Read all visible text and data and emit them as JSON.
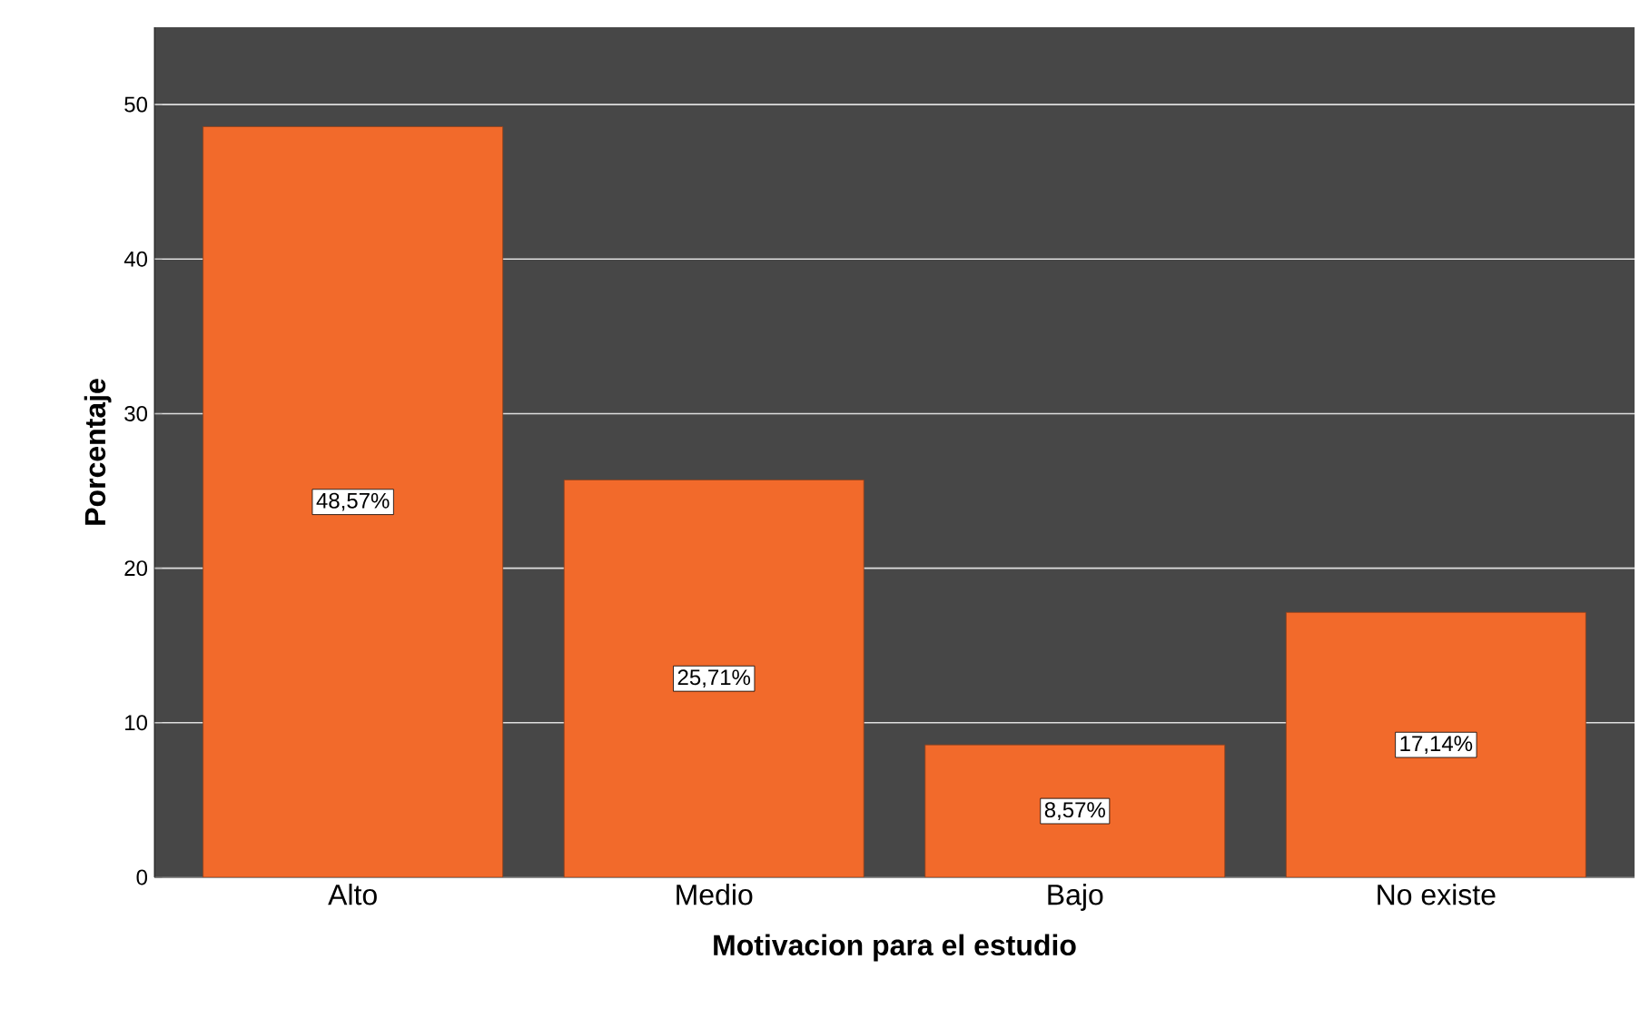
{
  "chart_data": {
    "type": "bar",
    "xlabel": "Motivacion para el estudio",
    "ylabel": "Porcentaje",
    "categories": [
      "Alto",
      "Medio",
      "Bajo",
      "No existe"
    ],
    "values": [
      48.57,
      25.71,
      8.57,
      17.14
    ],
    "value_labels": [
      "48,57%",
      "25,71%",
      "8,57%",
      "17,14%"
    ],
    "color": "#f26a2b",
    "ylim": [
      0,
      55
    ],
    "yticks": [
      0,
      10,
      20,
      30,
      40,
      50
    ],
    "grid": "y"
  }
}
